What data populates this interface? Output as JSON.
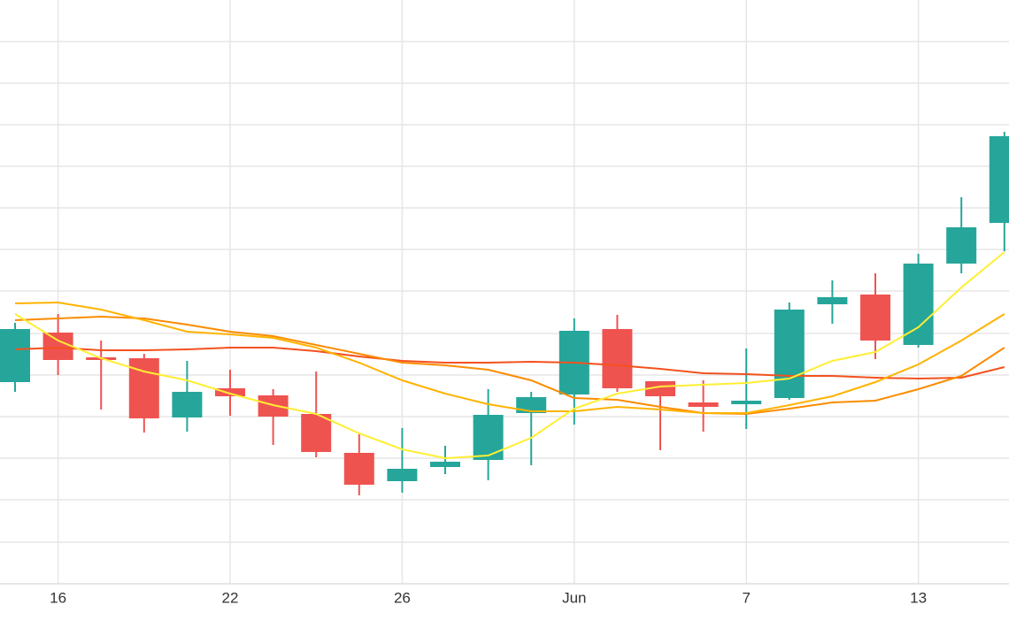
{
  "chart_data": {
    "type": "candlestick",
    "categories": [
      null,
      "16",
      null,
      null,
      null,
      "22",
      null,
      null,
      null,
      "26",
      null,
      null,
      null,
      "Jun",
      null,
      null,
      null,
      "7",
      null,
      null,
      null,
      "13",
      null,
      null
    ],
    "open": [
      228,
      284,
      256,
      255,
      188,
      221,
      213,
      192,
      148,
      116,
      132,
      140,
      193,
      214,
      288,
      229,
      205,
      203,
      210,
      316,
      327,
      270,
      362,
      408
    ],
    "high": [
      295,
      305,
      275,
      260,
      252,
      242,
      220,
      240,
      169,
      176,
      156,
      220,
      217,
      300,
      304,
      229,
      230,
      266,
      318,
      343,
      351,
      373,
      437,
      511
    ],
    "low": [
      217,
      236,
      197,
      171,
      172,
      190,
      157,
      143,
      100,
      103,
      124,
      117,
      134,
      180,
      217,
      151,
      172,
      175,
      208,
      294,
      254,
      267,
      351,
      376
    ],
    "close": [
      288,
      253,
      253,
      187,
      217,
      212,
      189,
      149,
      112,
      130,
      138,
      191,
      211,
      286,
      221,
      212,
      200,
      207,
      310,
      324,
      275,
      362,
      403,
      506
    ],
    "up_color": "#26a69a",
    "down_color": "#ef5350",
    "series": [
      {
        "color": "#f4511e",
        "values": [
          265,
          267,
          264,
          264,
          265,
          267,
          267,
          263,
          257,
          252,
          250,
          250,
          251,
          250,
          247,
          243,
          238,
          237,
          235,
          235,
          233,
          232,
          233,
          245
        ]
      },
      {
        "color": "#fb8c00",
        "values": [
          298,
          300,
          302,
          300,
          293,
          285,
          280,
          270,
          260,
          250,
          247,
          242,
          230,
          210,
          208,
          200,
          193,
          192,
          198,
          205,
          207,
          220,
          235,
          267
        ]
      },
      {
        "color": "#ffb300",
        "values": [
          317,
          318,
          310,
          298,
          285,
          282,
          278,
          267,
          250,
          230,
          215,
          203,
          195,
          195,
          200,
          197,
          193,
          193,
          202,
          212,
          228,
          248,
          275,
          305
        ]
      },
      {
        "color": "#ffee33",
        "values": [
          305,
          275,
          255,
          240,
          230,
          215,
          202,
          192,
          170,
          152,
          142,
          145,
          165,
          198,
          215,
          223,
          225,
          227,
          232,
          252,
          262,
          290,
          335,
          375
        ]
      }
    ],
    "ylim": [
      0,
      660
    ],
    "yticks": [
      47,
      95,
      142,
      189,
      236,
      283,
      331,
      378,
      425,
      472,
      519,
      566,
      613
    ],
    "grid": true
  }
}
